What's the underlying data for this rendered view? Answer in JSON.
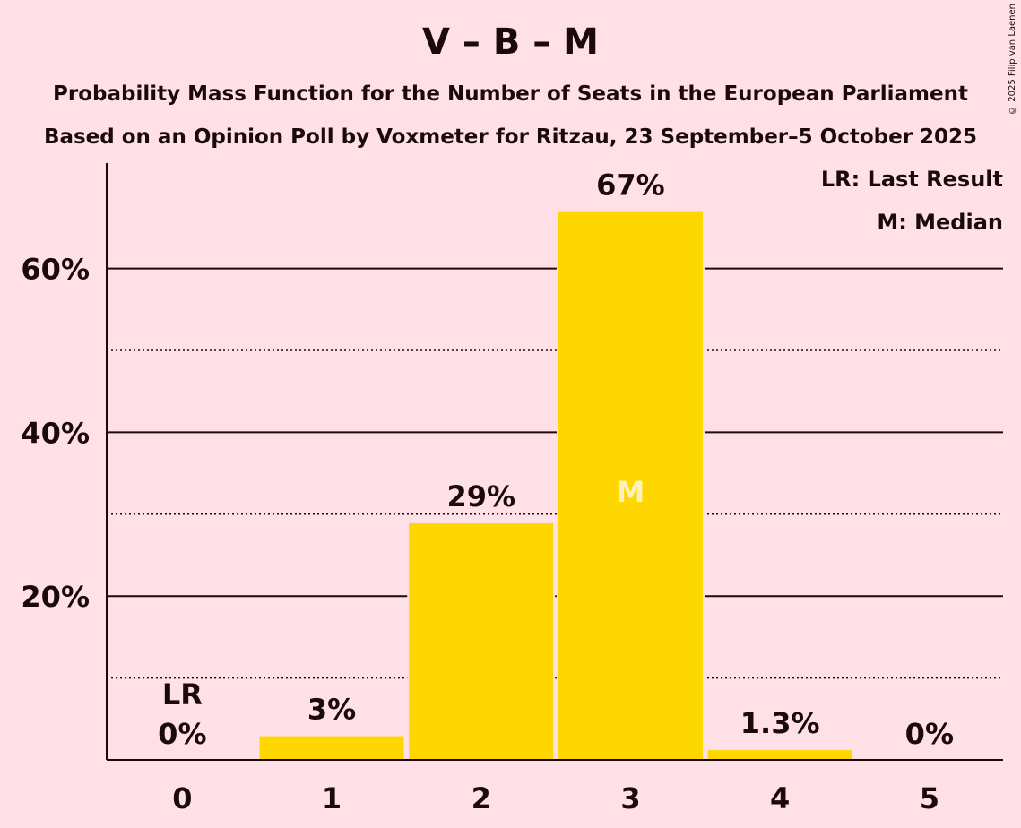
{
  "header": {
    "title": "V – B – M",
    "subtitle1": "Probability Mass Function for the Number of Seats in the European Parliament",
    "subtitle2": "Based on an Opinion Poll by Voxmeter for Ritzau, 23 September–5 October 2025",
    "copyright": "© 2025 Filip van Laenen"
  },
  "legend": {
    "last_result": "LR: Last Result",
    "median": "M: Median"
  },
  "colors": {
    "background": "#FFE0E6",
    "bar": "#FFD700",
    "text": "#1a0a0e",
    "median_text": "#FFF0C0"
  },
  "chart_data": {
    "type": "bar",
    "categories": [
      "0",
      "1",
      "2",
      "3",
      "4",
      "5"
    ],
    "values": [
      0,
      3,
      29,
      67,
      1.3,
      0
    ],
    "data_labels": [
      "0%",
      "3%",
      "29%",
      "67%",
      "1.3%",
      "0%"
    ],
    "ylim": [
      0,
      73
    ],
    "yticks": [
      20,
      40,
      60
    ],
    "ytick_labels": [
      "20%",
      "40%",
      "60%"
    ],
    "minor_gridlines": [
      10,
      30,
      50
    ],
    "last_result_index": 0,
    "last_result_label": "LR",
    "median_index": 3,
    "median_label": "M",
    "grid": true,
    "legend_position": "top-right"
  }
}
